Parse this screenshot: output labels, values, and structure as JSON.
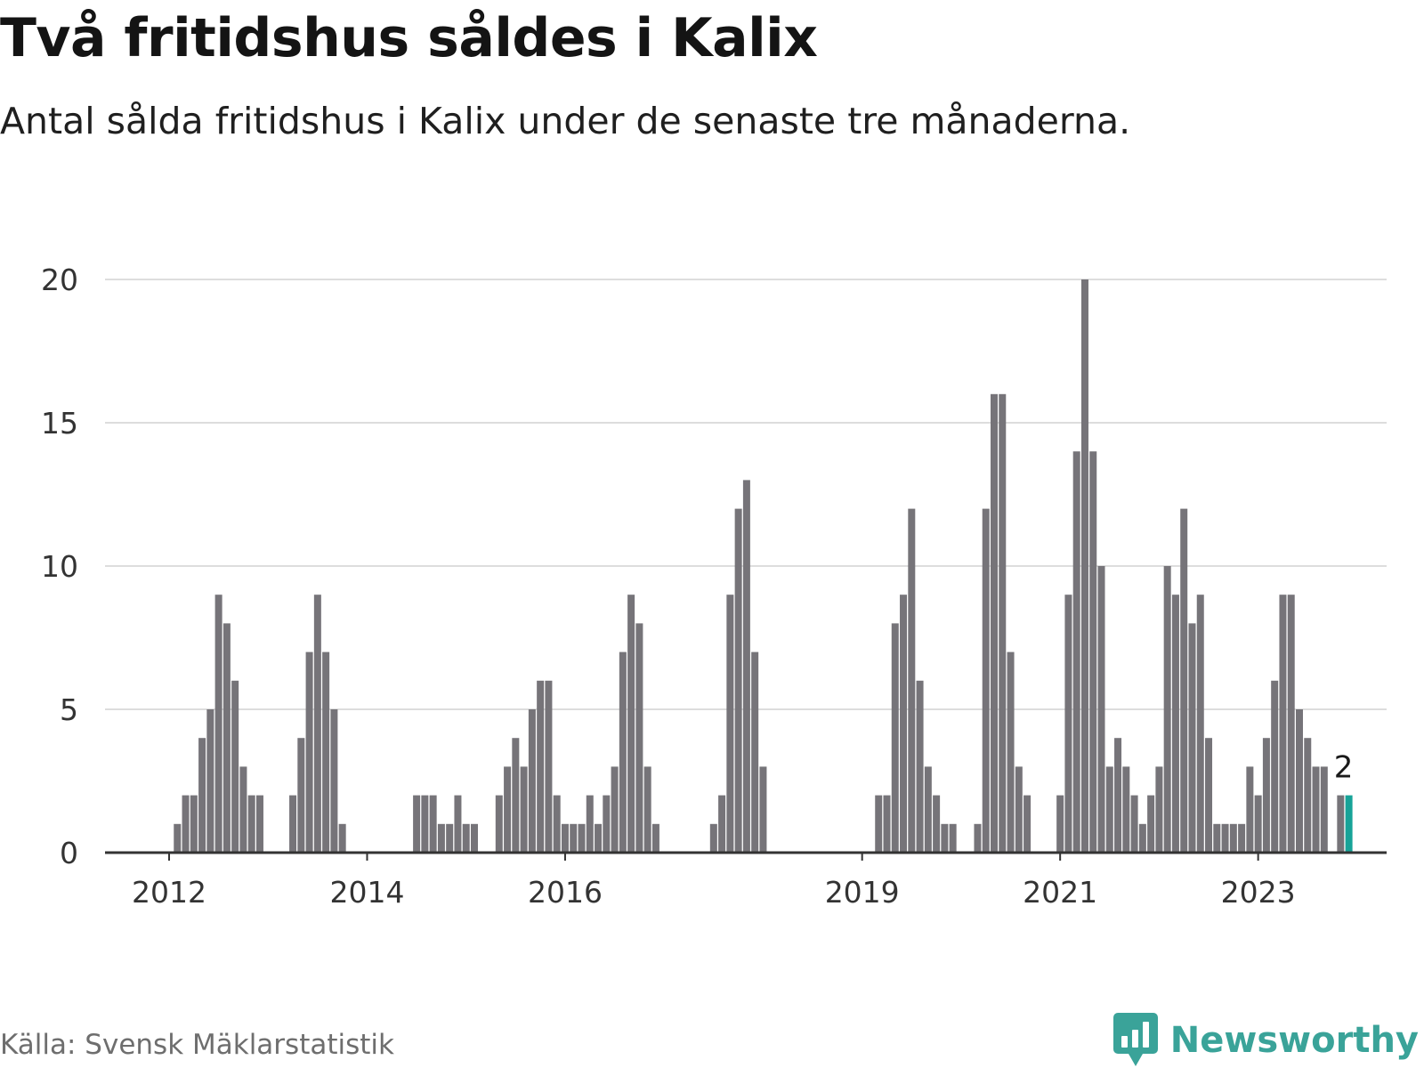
{
  "title": "Två fritidshus såldes i Kalix",
  "subtitle": "Antal sålda fritidshus i Kalix under de senaste tre månaderna.",
  "source": "Källa: Svensk Mäklarstatistik",
  "brand": {
    "name": "Newsworthy",
    "icon": "newsworthy-logo-icon"
  },
  "colors": {
    "bar": "#767479",
    "highlight": "#17a398",
    "grid": "#dddddd",
    "axis": "#333333",
    "brand": "#3aa399"
  },
  "chart_data": {
    "type": "bar",
    "title": "Två fritidshus såldes i Kalix",
    "subtitle": "Antal sålda fritidshus i Kalix under de senaste tre månaderna.",
    "xlabel": "",
    "ylabel": "",
    "ylim": [
      0,
      20
    ],
    "yticks": [
      0,
      5,
      10,
      15,
      20
    ],
    "grid": true,
    "legend": "none",
    "x_tick_labels": [
      {
        "label": "2012",
        "index": 0
      },
      {
        "label": "2014",
        "index": 24
      },
      {
        "label": "2016",
        "index": 48
      },
      {
        "label": "2019",
        "index": 84
      },
      {
        "label": "2021",
        "index": 108
      },
      {
        "label": "2023",
        "index": 132
      }
    ],
    "start_month": "2012-01",
    "values": [
      0,
      1,
      2,
      2,
      4,
      5,
      9,
      8,
      6,
      3,
      2,
      2,
      0,
      0,
      0,
      2,
      4,
      7,
      9,
      7,
      5,
      1,
      0,
      0,
      0,
      0,
      0,
      0,
      0,
      0,
      2,
      2,
      2,
      1,
      1,
      2,
      1,
      1,
      0,
      0,
      2,
      3,
      4,
      3,
      5,
      6,
      6,
      2,
      1,
      1,
      1,
      2,
      1,
      2,
      3,
      7,
      9,
      8,
      3,
      1,
      0,
      0,
      0,
      0,
      0,
      0,
      1,
      2,
      9,
      12,
      13,
      7,
      3,
      0,
      0,
      0,
      0,
      0,
      0,
      0,
      0,
      0,
      0,
      0,
      0,
      0,
      2,
      2,
      8,
      9,
      12,
      6,
      3,
      2,
      1,
      1,
      0,
      0,
      1,
      12,
      16,
      16,
      7,
      3,
      2,
      0,
      0,
      0,
      2,
      9,
      14,
      20,
      14,
      10,
      3,
      4,
      3,
      2,
      1,
      2,
      3,
      10,
      9,
      12,
      8,
      9,
      4,
      1,
      1,
      1,
      1,
      3,
      2,
      4,
      6,
      9,
      9,
      5,
      4,
      3,
      3,
      0,
      2,
      2
    ],
    "highlight": {
      "label": "2",
      "from_index": 143,
      "to_index": 143
    }
  }
}
